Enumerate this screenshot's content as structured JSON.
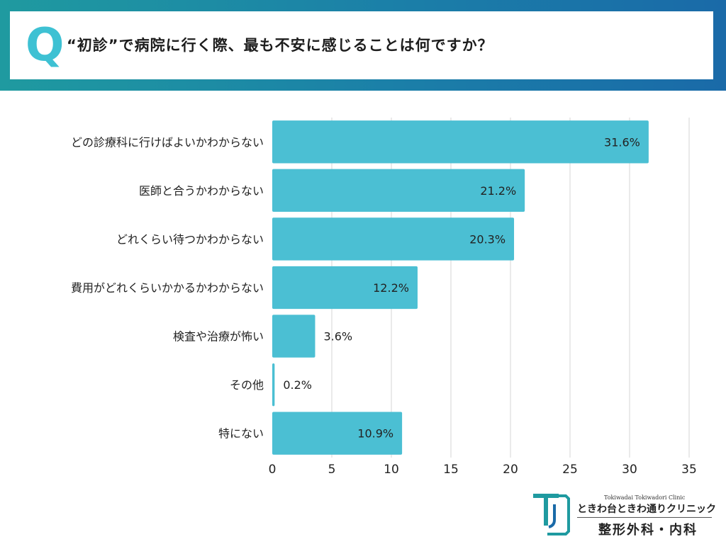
{
  "header": {
    "q_mark": "Q",
    "question": "“初診”で病院に行く際、最も不安に感じることは何ですか？"
  },
  "chart_data": {
    "type": "bar",
    "orientation": "horizontal",
    "categories": [
      "どの診療科に行けばよいかわからない",
      "医師と合うかわからない",
      "どれくらい待つかわからない",
      "費用がどれくらいかかるかわからない",
      "検査や治療が怖い",
      "その他",
      "特にない"
    ],
    "values": [
      31.6,
      21.2,
      20.3,
      12.2,
      3.6,
      0.2,
      10.9
    ],
    "data_labels": [
      "31.6%",
      "21.2%",
      "20.3%",
      "12.2%",
      "3.6%",
      "0.2%",
      "10.9%"
    ],
    "xlim": [
      0,
      35
    ],
    "xticks": [
      "0",
      "5",
      "10",
      "15",
      "20",
      "25",
      "30",
      "35"
    ],
    "grid": true,
    "bar_color": "#4bbfd3"
  },
  "logo": {
    "english": "Tokiwadai Tokiwadori Clinic",
    "name": "ときわ台ときわ通りクリニック",
    "department": "整形外科・内科",
    "color": "#1f9aa0"
  }
}
